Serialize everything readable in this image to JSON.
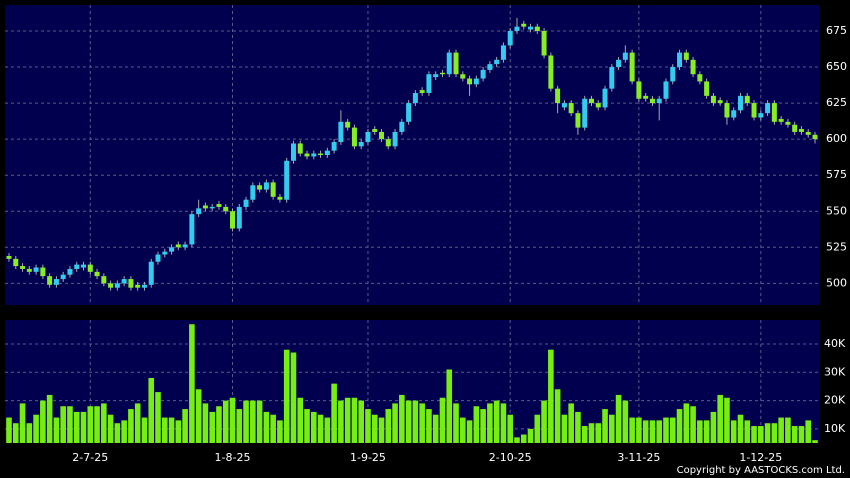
{
  "chart_data": {
    "type": "candlestick",
    "categories": [
      null,
      null,
      null,
      null,
      null,
      null,
      null,
      null,
      null,
      null,
      null,
      null,
      "2-7-25",
      null,
      null,
      null,
      null,
      null,
      null,
      null,
      null,
      null,
      null,
      null,
      null,
      null,
      null,
      null,
      null,
      null,
      null,
      null,
      null,
      "1-8-25",
      null,
      null,
      null,
      null,
      null,
      null,
      null,
      null,
      null,
      null,
      null,
      null,
      null,
      null,
      null,
      null,
      null,
      null,
      null,
      "1-9-25",
      null,
      null,
      null,
      null,
      null,
      null,
      null,
      null,
      null,
      null,
      null,
      null,
      null,
      null,
      null,
      null,
      null,
      null,
      null,
      null,
      "2-10-25",
      null,
      null,
      null,
      null,
      null,
      null,
      null,
      null,
      null,
      null,
      null,
      null,
      null,
      null,
      null,
      null,
      null,
      null,
      "3-11-25",
      null,
      null,
      null,
      null,
      null,
      null,
      null,
      null,
      null,
      null,
      null,
      null,
      null,
      null,
      null,
      null,
      null,
      "1-12-25",
      null,
      null,
      null,
      null,
      null,
      null,
      null,
      null
    ],
    "open": [
      519,
      517,
      512,
      510,
      508,
      511,
      505,
      499,
      503,
      506,
      510,
      511,
      513,
      508,
      505,
      500,
      497,
      500,
      503,
      499,
      497,
      499,
      515,
      520,
      522,
      527,
      525,
      527,
      548,
      554,
      552,
      555,
      553,
      550,
      538,
      553,
      558,
      568,
      565,
      570,
      560,
      558,
      585,
      597,
      590,
      588,
      590,
      589,
      592,
      598,
      612,
      608,
      595,
      598,
      607,
      605,
      600,
      595,
      605,
      612,
      625,
      634,
      632,
      643,
      646,
      645,
      660,
      645,
      642,
      638,
      642,
      648,
      652,
      655,
      665,
      675,
      680,
      676,
      678,
      675,
      658,
      635,
      622,
      625,
      618,
      608,
      628,
      625,
      622,
      635,
      650,
      655,
      660,
      640,
      630,
      628,
      625,
      628,
      640,
      650,
      660,
      655,
      645,
      640,
      630,
      627,
      625,
      615,
      620,
      630,
      625,
      615,
      618,
      625,
      614,
      612,
      610,
      607,
      605,
      603
    ],
    "high": [
      521,
      519,
      514,
      512,
      513,
      513,
      507,
      505,
      508,
      512,
      515,
      515,
      515,
      510,
      507,
      502,
      502,
      505,
      505,
      501,
      501,
      517,
      522,
      524,
      527,
      529,
      529,
      550,
      558,
      556,
      555,
      557,
      555,
      552,
      555,
      560,
      570,
      570,
      572,
      572,
      562,
      587,
      599,
      599,
      592,
      592,
      592,
      594,
      600,
      620,
      614,
      610,
      600,
      607,
      609,
      607,
      602,
      607,
      614,
      627,
      634,
      636,
      647,
      647,
      648,
      662,
      662,
      647,
      644,
      644,
      650,
      654,
      657,
      667,
      677,
      684,
      682,
      680,
      680,
      677,
      660,
      637,
      627,
      627,
      620,
      630,
      630,
      627,
      637,
      652,
      657,
      665,
      662,
      642,
      632,
      630,
      630,
      642,
      652,
      662,
      662,
      657,
      647,
      642,
      632,
      629,
      627,
      622,
      632,
      632,
      627,
      620,
      627,
      627,
      616,
      614,
      612,
      609,
      607,
      605
    ],
    "low": [
      515,
      510,
      508,
      506,
      506,
      503,
      497,
      497,
      501,
      504,
      508,
      509,
      506,
      503,
      498,
      495,
      495,
      498,
      495,
      495,
      495,
      497,
      513,
      518,
      520,
      523,
      523,
      525,
      546,
      550,
      550,
      551,
      548,
      536,
      536,
      551,
      556,
      563,
      563,
      558,
      556,
      556,
      583,
      588,
      586,
      586,
      587,
      587,
      590,
      596,
      606,
      593,
      593,
      596,
      603,
      598,
      593,
      593,
      603,
      610,
      623,
      630,
      630,
      641,
      643,
      643,
      643,
      640,
      630,
      636,
      640,
      646,
      650,
      653,
      663,
      673,
      676,
      674,
      673,
      656,
      633,
      618,
      620,
      616,
      603,
      606,
      623,
      620,
      620,
      633,
      648,
      653,
      638,
      626,
      626,
      623,
      613,
      626,
      638,
      648,
      653,
      643,
      638,
      628,
      623,
      623,
      610,
      613,
      618,
      623,
      613,
      613,
      616,
      610,
      610,
      608,
      603,
      603,
      601,
      597
    ],
    "close": [
      517,
      512,
      510,
      508,
      511,
      505,
      499,
      503,
      506,
      510,
      513,
      513,
      508,
      505,
      500,
      497,
      500,
      503,
      497,
      497,
      499,
      515,
      520,
      522,
      525,
      525,
      527,
      548,
      552,
      552,
      553,
      553,
      550,
      538,
      553,
      558,
      568,
      565,
      570,
      560,
      558,
      585,
      597,
      590,
      588,
      590,
      589,
      592,
      598,
      612,
      608,
      595,
      598,
      605,
      605,
      600,
      595,
      605,
      612,
      625,
      632,
      632,
      645,
      645,
      645,
      660,
      645,
      642,
      638,
      642,
      648,
      652,
      655,
      665,
      675,
      678,
      678,
      678,
      675,
      658,
      635,
      625,
      625,
      618,
      608,
      628,
      625,
      622,
      635,
      650,
      655,
      660,
      640,
      628,
      628,
      625,
      628,
      640,
      650,
      660,
      655,
      645,
      640,
      630,
      625,
      625,
      615,
      620,
      630,
      625,
      615,
      618,
      625,
      612,
      612,
      610,
      605,
      605,
      603,
      600
    ],
    "up_color": "#33ccee",
    "down_color": "#88ee22",
    "ylim": [
      485,
      693
    ],
    "yticks": [
      500,
      525,
      550,
      575,
      600,
      625,
      650,
      675
    ],
    "grid": true,
    "volume": {
      "color": "#77ee11",
      "values": [
        14000,
        12000,
        19000,
        12000,
        15000,
        20000,
        22000,
        14000,
        18000,
        18000,
        16000,
        16000,
        18000,
        18000,
        19000,
        15000,
        12000,
        13000,
        17000,
        19000,
        14000,
        28000,
        23000,
        14000,
        14000,
        13000,
        17000,
        47000,
        24000,
        19000,
        16000,
        18000,
        20000,
        21000,
        17000,
        20000,
        20000,
        20000,
        16000,
        15000,
        13000,
        38000,
        37000,
        21000,
        17000,
        16000,
        15000,
        14000,
        26000,
        20000,
        21000,
        21000,
        20000,
        17000,
        15000,
        14000,
        17000,
        19000,
        22000,
        20000,
        20000,
        19000,
        17000,
        15000,
        21000,
        31000,
        19000,
        14000,
        13000,
        18000,
        17000,
        19000,
        20000,
        19000,
        15000,
        7000,
        8000,
        10000,
        15000,
        20000,
        38000,
        24000,
        15000,
        19000,
        16000,
        11000,
        12000,
        12000,
        17000,
        15000,
        22000,
        20000,
        14000,
        14000,
        13000,
        13000,
        13000,
        14000,
        14000,
        17000,
        19000,
        18000,
        13000,
        13000,
        16000,
        22000,
        21000,
        13000,
        15000,
        13000,
        11000,
        11000,
        12000,
        12000,
        14000,
        14000,
        11000,
        11000,
        13000,
        6000
      ],
      "ylim": [
        5000,
        48500
      ],
      "yticks": [
        {
          "value": 10000,
          "label": "10K"
        },
        {
          "value": 20000,
          "label": "20K"
        },
        {
          "value": 30000,
          "label": "30K"
        },
        {
          "value": 40000,
          "label": "40K"
        }
      ]
    },
    "source": "Copyright by AASTOCKS.com Ltd."
  }
}
